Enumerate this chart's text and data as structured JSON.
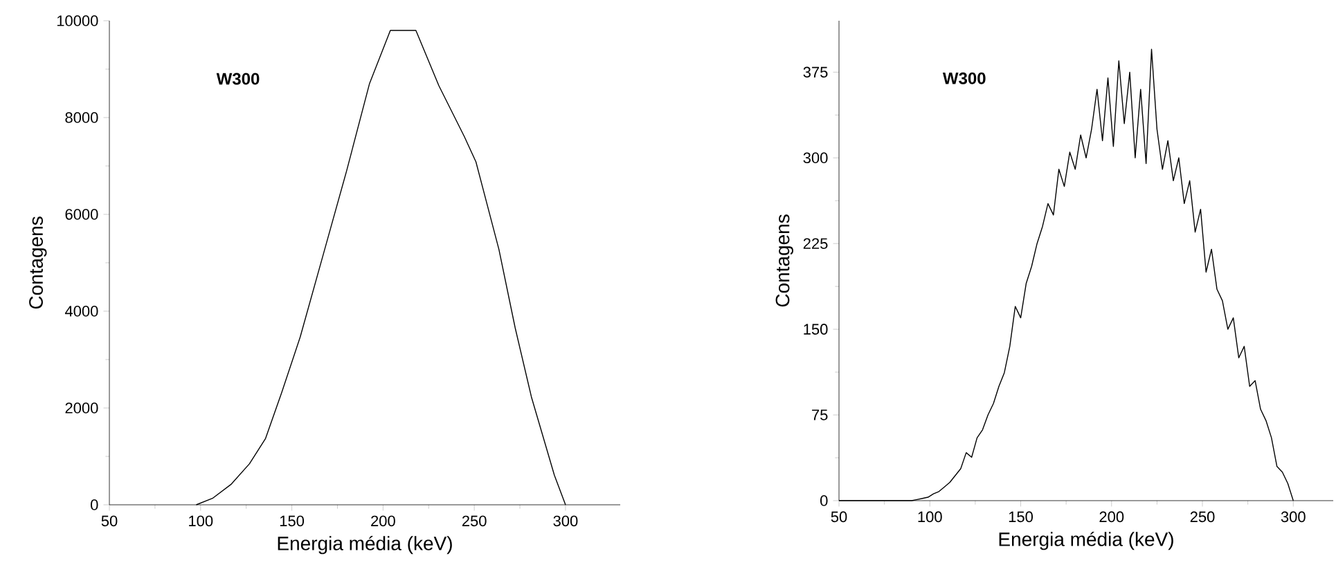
{
  "chart_data": [
    {
      "type": "line",
      "xlabel": "Energia média (keV)",
      "ylabel": "Contagens",
      "annotations": [
        "W300"
      ],
      "marker": "none",
      "line_style": "solid",
      "x": [
        97.6,
        106.5,
        116.6,
        126.8,
        135.6,
        144.5,
        154.6,
        167.3,
        180,
        192.6,
        204,
        218,
        230.6,
        244.5,
        250.9,
        263.5,
        272.4,
        281.3,
        293.9,
        300
      ],
      "series": [
        {
          "color": "#000000",
          "values": [
            0,
            133,
            419,
            848,
            1371,
            2324,
            3467,
            5181,
            6895,
            8705,
            9800,
            9800,
            8657,
            7610,
            7086,
            5276,
            3657,
            2229,
            610,
            0
          ]
        }
      ],
      "xlim": [
        50,
        330
      ],
      "ylim": [
        0,
        10000
      ],
      "xticks": [
        50,
        100,
        150,
        200,
        250,
        300
      ],
      "yticks": [
        0,
        2000,
        4000,
        6000,
        8000,
        10000
      ]
    },
    {
      "type": "line",
      "xlabel": "Energia média (keV)",
      "ylabel": "Contagens",
      "annotations": [
        "W300"
      ],
      "marker": "none",
      "line_style": "solid",
      "x": [
        50,
        90,
        93,
        96,
        99,
        102,
        105,
        108,
        111,
        114,
        117,
        120,
        123,
        126,
        129,
        132,
        135,
        138,
        141,
        144,
        147,
        150,
        153,
        156,
        159,
        162,
        165,
        168,
        171,
        174,
        177,
        180,
        183,
        186,
        189,
        192,
        195,
        198,
        201,
        204,
        207,
        210,
        213,
        216,
        219,
        222,
        225,
        228,
        231,
        234,
        237,
        240,
        243,
        246,
        249,
        252,
        255,
        258,
        261,
        264,
        267,
        270,
        273,
        276,
        279,
        282,
        285,
        288,
        291,
        294,
        297,
        300
      ],
      "series": [
        {
          "color": "#000000",
          "values": [
            0,
            0,
            1,
            2,
            3,
            6,
            8,
            12,
            16,
            22,
            28,
            42,
            38,
            55,
            62,
            75,
            85,
            100,
            112,
            135,
            170,
            160,
            190,
            205,
            225,
            240,
            260,
            250,
            290,
            275,
            305,
            290,
            320,
            300,
            325,
            360,
            315,
            370,
            310,
            385,
            330,
            375,
            300,
            360,
            295,
            395,
            325,
            290,
            315,
            280,
            300,
            260,
            280,
            235,
            255,
            200,
            220,
            185,
            175,
            150,
            160,
            125,
            135,
            100,
            105,
            80,
            70,
            55,
            30,
            25,
            15,
            0
          ]
        }
      ],
      "xlim": [
        50,
        322
      ],
      "ylim": [
        0,
        420
      ],
      "xticks": [
        50,
        100,
        150,
        200,
        250,
        300
      ],
      "yticks": [
        0,
        75,
        150,
        225,
        300,
        375
      ]
    }
  ]
}
